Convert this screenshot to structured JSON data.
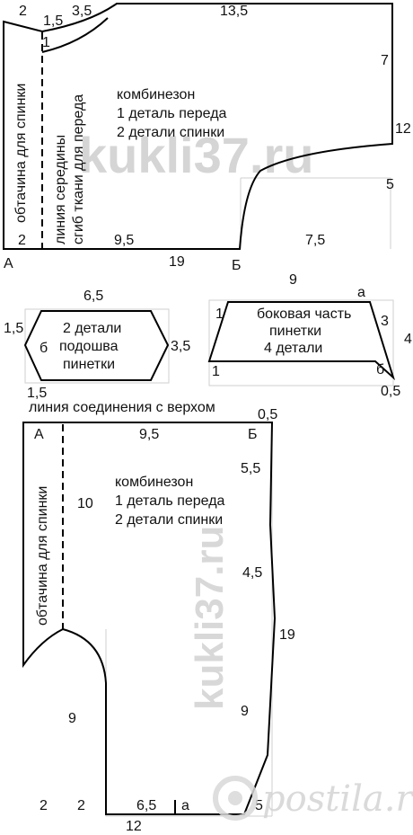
{
  "top_pattern": {
    "dims": {
      "d2_top": "2",
      "d15_top": "1,5",
      "d35_top": "3,5",
      "d135": "13,5",
      "d1_neck": "1",
      "d7": "7",
      "d12": "12",
      "d5": "5",
      "d2_bottom": "2",
      "d95": "9,5",
      "d75": "7,5",
      "d19": "19"
    },
    "corner_a": "А",
    "corner_b": "Б",
    "facing_text": "обтачина для спинки",
    "center_line_text": "линия середины",
    "fold_text": "сгиб ткани для переда",
    "title": "комбинезон",
    "line1": "1 деталь переда",
    "line2": "2 детали спинки"
  },
  "sole": {
    "dims": {
      "width": "6,5",
      "left": "1,5",
      "right": "3,5",
      "bottom_left": "1,5"
    },
    "point_b": "б",
    "label1": "2 детали",
    "label2": "подошва",
    "label3": "пинетки"
  },
  "side_part": {
    "dims": {
      "top": "9",
      "left1": "1",
      "left2": "1",
      "right": "3",
      "far_right": "4",
      "bottom_right": "0,5"
    },
    "point_a": "а",
    "point_b": "б",
    "label1": "боковая часть",
    "label2": "пинетки",
    "label3": "4 детали"
  },
  "bottom_pattern": {
    "join_line": "линия соединения с верхом",
    "dims": {
      "top_right": "0,5",
      "d95": "9,5",
      "d55": "5,5",
      "d10": "10",
      "d45": "4,5",
      "d19": "19",
      "d9_left": "9",
      "d9_right": "9",
      "d2_a": "2",
      "d2_b": "2",
      "d65": "6,5",
      "d12": "12",
      "d5": "5"
    },
    "corner_a": "А",
    "corner_b": "Б",
    "point_a": "а",
    "facing_text": "обтачина для спинки",
    "title": "комбинезон",
    "line1": "1 деталь переда",
    "line2": "2 детали спинки"
  },
  "watermarks": {
    "kukli_top": "kukli37.ru",
    "kukli_vertical": "kukli37.ru",
    "postila": "postila.ru"
  }
}
